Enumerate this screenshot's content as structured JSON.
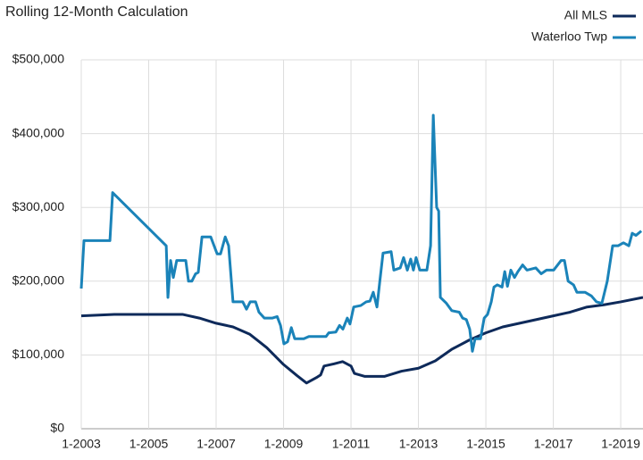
{
  "chart_data": {
    "type": "line",
    "title": "Rolling 12-Month Calculation",
    "xlim": [
      2003,
      2019.66
    ],
    "ylim": [
      0,
      500000
    ],
    "xticks": [
      {
        "value": 2003,
        "label": "1-2003"
      },
      {
        "value": 2005,
        "label": "1-2005"
      },
      {
        "value": 2007,
        "label": "1-2007"
      },
      {
        "value": 2009,
        "label": "1-2009"
      },
      {
        "value": 2011,
        "label": "1-2011"
      },
      {
        "value": 2013,
        "label": "1-2013"
      },
      {
        "value": 2015,
        "label": "1-2015"
      },
      {
        "value": 2017,
        "label": "1-2017"
      },
      {
        "value": 2019,
        "label": "1-2019"
      }
    ],
    "yticks": [
      {
        "value": 0,
        "label": "$0"
      },
      {
        "value": 100000,
        "label": "$100,000"
      },
      {
        "value": 200000,
        "label": "$200,000"
      },
      {
        "value": 300000,
        "label": "$300,000"
      },
      {
        "value": 400000,
        "label": "$400,000"
      },
      {
        "value": 500000,
        "label": "$500,000"
      }
    ],
    "grid": true,
    "legend": "top-right",
    "series": [
      {
        "name": "All MLS",
        "color": "#0e2a5a",
        "x": [
          2003,
          2004,
          2006,
          2006.5,
          2007,
          2007.5,
          2008,
          2008.5,
          2009,
          2009.4,
          2009.68,
          2010,
          2010.1,
          2010.2,
          2010.5,
          2010.75,
          2011,
          2011.1,
          2011.4,
          2012,
          2012.5,
          2013,
          2013.5,
          2014,
          2014.5,
          2015,
          2015.5,
          2016,
          2016.5,
          2017,
          2017.5,
          2018,
          2018.5,
          2019,
          2019.66
        ],
        "values": [
          153000,
          155000,
          155000,
          150000,
          143000,
          138000,
          128000,
          110000,
          87000,
          72000,
          62000,
          70000,
          73000,
          85000,
          88000,
          91000,
          85000,
          75000,
          71000,
          71000,
          78000,
          82000,
          92000,
          108000,
          120000,
          130000,
          138000,
          143000,
          148000,
          153000,
          158000,
          165000,
          168000,
          172000,
          178000
        ]
      },
      {
        "name": "Waterloo Twp",
        "color": "#1a83b9",
        "x": [
          2003.0,
          2003.08,
          2003.85,
          2003.93,
          2005.52,
          2005.57,
          2005.65,
          2005.73,
          2005.83,
          2006.1,
          2006.18,
          2006.28,
          2006.39,
          2006.47,
          2006.58,
          2006.84,
          2007.03,
          2007.13,
          2007.27,
          2007.37,
          2007.5,
          2007.79,
          2007.9,
          2008.01,
          2008.17,
          2008.27,
          2008.43,
          2008.67,
          2008.81,
          2008.91,
          2009.01,
          2009.12,
          2009.23,
          2009.33,
          2009.6,
          2009.75,
          2010.26,
          2010.34,
          2010.55,
          2010.66,
          2010.76,
          2010.89,
          2010.97,
          2011.08,
          2011.29,
          2011.45,
          2011.56,
          2011.66,
          2011.77,
          2011.85,
          2011.95,
          2012.19,
          2012.27,
          2012.46,
          2012.56,
          2012.67,
          2012.77,
          2012.85,
          2012.93,
          2013.04,
          2013.25,
          2013.36,
          2013.44,
          2013.54,
          2013.6,
          2013.65,
          2013.83,
          2013.99,
          2014.21,
          2014.31,
          2014.42,
          2014.52,
          2014.6,
          2014.68,
          2014.84,
          2014.95,
          2015.05,
          2015.16,
          2015.24,
          2015.34,
          2015.48,
          2015.56,
          2015.64,
          2015.74,
          2015.85,
          2015.95,
          2016.09,
          2016.22,
          2016.48,
          2016.64,
          2016.8,
          2017.01,
          2017.23,
          2017.33,
          2017.44,
          2017.6,
          2017.7,
          2017.94,
          2018.13,
          2018.28,
          2018.44,
          2018.6,
          2018.76,
          2018.92,
          2019.08,
          2019.24,
          2019.34,
          2019.45,
          2019.61
        ],
        "values": [
          190000,
          255000,
          255000,
          320000,
          248000,
          178000,
          228000,
          205000,
          228000,
          228000,
          200000,
          200000,
          210000,
          212000,
          260000,
          260000,
          237000,
          237000,
          260000,
          248000,
          172000,
          172000,
          162000,
          172000,
          172000,
          158000,
          150000,
          150000,
          152000,
          140000,
          115000,
          118000,
          137000,
          122000,
          122000,
          125000,
          125000,
          130000,
          131000,
          140000,
          135000,
          150000,
          142000,
          165000,
          167000,
          172000,
          173000,
          185000,
          165000,
          198000,
          238000,
          240000,
          215000,
          218000,
          232000,
          215000,
          230000,
          215000,
          232000,
          215000,
          215000,
          248000,
          425000,
          300000,
          295000,
          178000,
          170000,
          160000,
          158000,
          150000,
          148000,
          135000,
          105000,
          122000,
          122000,
          150000,
          155000,
          172000,
          192000,
          195000,
          192000,
          213000,
          193000,
          215000,
          205000,
          213000,
          222000,
          215000,
          218000,
          210000,
          215000,
          215000,
          228000,
          228000,
          200000,
          195000,
          185000,
          185000,
          180000,
          172000,
          170000,
          200000,
          248000,
          248000,
          252000,
          248000,
          265000,
          262000,
          268000
        ]
      }
    ]
  }
}
